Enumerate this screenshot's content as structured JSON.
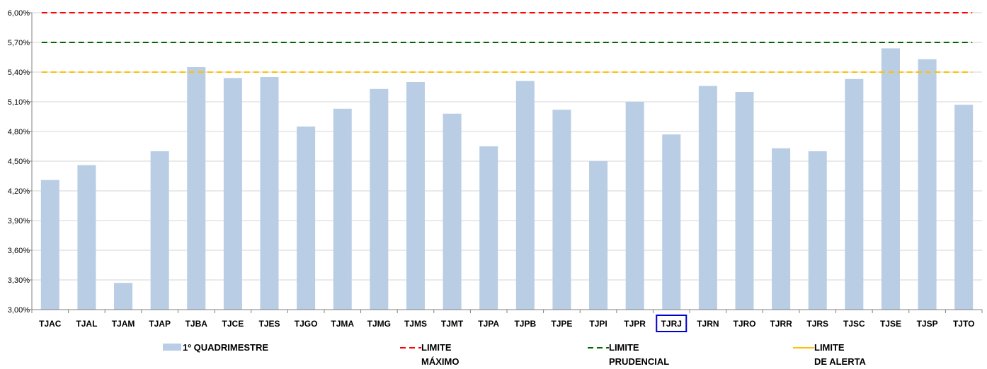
{
  "chart_data": {
    "type": "bar",
    "categories": [
      "TJAC",
      "TJAL",
      "TJAM",
      "TJAP",
      "TJBA",
      "TJCE",
      "TJES",
      "TJGO",
      "TJMA",
      "TJMG",
      "TJMS",
      "TJMT",
      "TJPA",
      "TJPB",
      "TJPE",
      "TJPI",
      "TJPR",
      "TJRJ",
      "TJRN",
      "TJRO",
      "TJRR",
      "TJRS",
      "TJSC",
      "TJSE",
      "TJSP",
      "TJTO"
    ],
    "highlighted_category": "TJRJ",
    "series": [
      {
        "name": "1º QUADRIMESTRE",
        "values": [
          4.31,
          4.46,
          3.27,
          4.6,
          5.45,
          5.34,
          5.35,
          4.85,
          5.03,
          5.23,
          5.3,
          4.98,
          4.65,
          5.31,
          5.02,
          4.5,
          5.1,
          4.77,
          5.26,
          5.2,
          4.63,
          4.6,
          5.33,
          5.64,
          5.53,
          5.07
        ],
        "color": "#b9cde5"
      }
    ],
    "reference_lines": [
      {
        "name": "LIMITE MÁXIMO",
        "name_lines": [
          "LIMITE",
          "MÁXIMO"
        ],
        "value": 6.0,
        "color": "#ff0000",
        "style": "dashed"
      },
      {
        "name": "LIMITE PRUDENCIAL",
        "name_lines": [
          "LIMITE",
          "PRUDENCIAL"
        ],
        "value": 5.7,
        "color": "#006600",
        "style": "dashed"
      },
      {
        "name": "LIMITE DE ALERTA",
        "name_lines": [
          "LIMITE",
          "DE ALERTA"
        ],
        "value": 5.4,
        "color": "#ffc000",
        "style": "dashed"
      }
    ],
    "ylim": [
      3.0,
      6.0
    ],
    "yticks": [
      "3,00%",
      "3,30%",
      "3,60%",
      "3,90%",
      "4,20%",
      "4,50%",
      "4,80%",
      "5,10%",
      "5,40%",
      "5,70%",
      "6,00%"
    ],
    "ytick_values": [
      3.0,
      3.3,
      3.6,
      3.9,
      4.2,
      4.5,
      4.8,
      5.1,
      5.4,
      5.7,
      6.0
    ],
    "grid": true,
    "legend_position": "bottom",
    "title": "",
    "xlabel": "",
    "ylabel": ""
  }
}
